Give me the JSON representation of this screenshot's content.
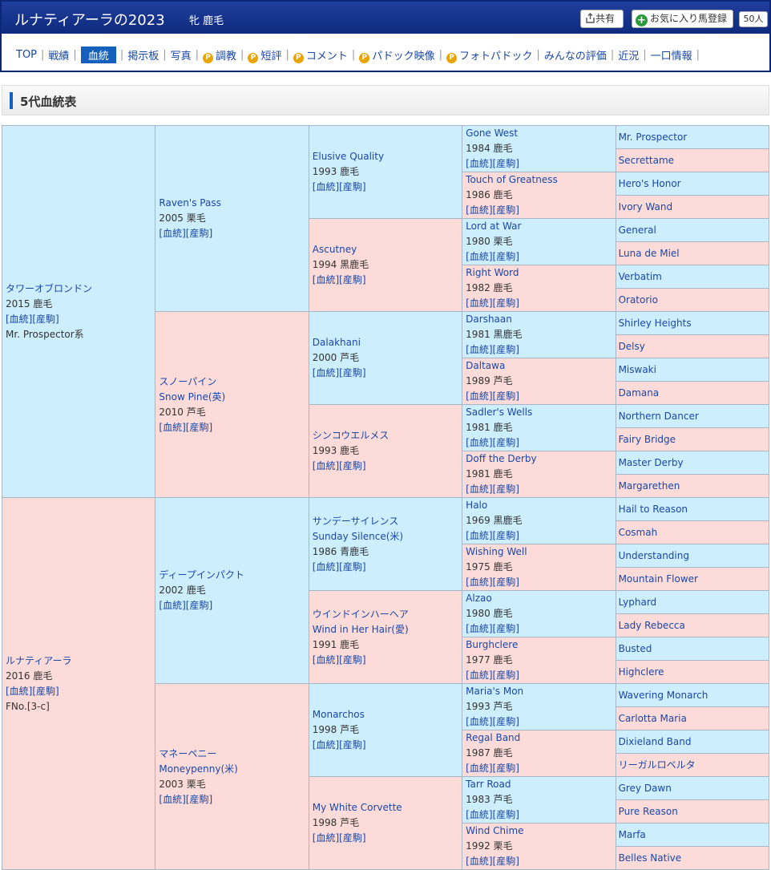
{
  "header": {
    "horse_name": "ルナティアーラの2023",
    "horse_info": "牝 鹿毛",
    "share_label": "共有",
    "fav_label": "お気に入り馬登録",
    "fav_count": "50人"
  },
  "nav": [
    {
      "label": "TOP"
    },
    {
      "label": "戦績"
    },
    {
      "label": "血統",
      "active": true
    },
    {
      "label": "掲示板"
    },
    {
      "label": "写真"
    },
    {
      "label": "調教",
      "premium": true
    },
    {
      "label": "短評",
      "premium": true
    },
    {
      "label": "コメント",
      "premium": true
    },
    {
      "label": "パドック映像",
      "premium": true
    },
    {
      "label": "フォトパドック",
      "premium": true
    },
    {
      "label": "みんなの評価"
    },
    {
      "label": "近況"
    },
    {
      "label": "一口情報"
    }
  ],
  "nav_premium_mark": "P",
  "section_title": "5代血統表",
  "links": {
    "pedigree": "[血統]",
    "produce": "[産駒]"
  },
  "pedigree": {
    "sire": {
      "name": "タワーオブロンドン",
      "line": "2015 鹿毛",
      "extra": "Mr. Prospector系"
    },
    "dam": {
      "name": "ルナティアーラ",
      "line": "2016 鹿毛",
      "extra": "FNo.[3-c]"
    },
    "g2": [
      {
        "name": "Raven's Pass",
        "line": "2005 栗毛"
      },
      {
        "name": "スノーパイン",
        "alt": "Snow Pine(英)",
        "line": "2010 芦毛"
      },
      {
        "name": "ディープインパクト",
        "line": "2002 鹿毛"
      },
      {
        "name": "マネーペニー",
        "alt": "Moneypenny(米)",
        "line": "2003 栗毛"
      }
    ],
    "g3": [
      {
        "name": "Elusive Quality",
        "line": "1993 鹿毛"
      },
      {
        "name": "Ascutney",
        "line": "1994 黒鹿毛"
      },
      {
        "name": "Dalakhani",
        "line": "2000 芦毛"
      },
      {
        "name": "シンコウエルメス",
        "line": "1993 鹿毛"
      },
      {
        "name": "サンデーサイレンス",
        "alt": "Sunday Silence(米)",
        "line": "1986 青鹿毛"
      },
      {
        "name": "ウインドインハーヘア",
        "alt": "Wind in Her Hair(愛)",
        "line": "1991 鹿毛"
      },
      {
        "name": "Monarchos",
        "line": "1998 芦毛"
      },
      {
        "name": "My White Corvette",
        "line": "1998 芦毛"
      }
    ],
    "g4": [
      {
        "name": "Gone West",
        "line": "1984 鹿毛"
      },
      {
        "name": "Touch of Greatness",
        "line": "1986 鹿毛"
      },
      {
        "name": "Lord at War",
        "line": "1980 栗毛"
      },
      {
        "name": "Right Word",
        "line": "1982 鹿毛"
      },
      {
        "name": "Darshaan",
        "line": "1981 黒鹿毛"
      },
      {
        "name": "Daltawa",
        "line": "1989 芦毛"
      },
      {
        "name": "Sadler's Wells",
        "line": "1981 鹿毛"
      },
      {
        "name": "Doff the Derby",
        "line": "1981 鹿毛"
      },
      {
        "name": "Halo",
        "line": "1969 黒鹿毛"
      },
      {
        "name": "Wishing Well",
        "line": "1975 鹿毛"
      },
      {
        "name": "Alzao",
        "line": "1980 鹿毛"
      },
      {
        "name": "Burghclere",
        "line": "1977 鹿毛"
      },
      {
        "name": "Maria's Mon",
        "line": "1993 芦毛"
      },
      {
        "name": "Regal Band",
        "line": "1987 鹿毛"
      },
      {
        "name": "Tarr Road",
        "line": "1983 芦毛"
      },
      {
        "name": "Wind Chime",
        "line": "1992 栗毛"
      }
    ],
    "g5": [
      "Mr. Prospector",
      "Secrettame",
      "Hero's Honor",
      "Ivory Wand",
      "General",
      "Luna de Miel",
      "Verbatim",
      "Oratorio",
      "Shirley Heights",
      "Delsy",
      "Miswaki",
      "Damana",
      "Northern Dancer",
      "Fairy Bridge",
      "Master Derby",
      "Margarethen",
      "Hail to Reason",
      "Cosmah",
      "Understanding",
      "Mountain Flower",
      "Lyphard",
      "Lady Rebecca",
      "Busted",
      "Highclere",
      "Wavering Monarch",
      "Carlotta Maria",
      "Dixieland Band",
      "リーガルロベルタ",
      "Grey Dawn",
      "Pure Reason",
      "Marfa",
      "Belles Native"
    ]
  }
}
